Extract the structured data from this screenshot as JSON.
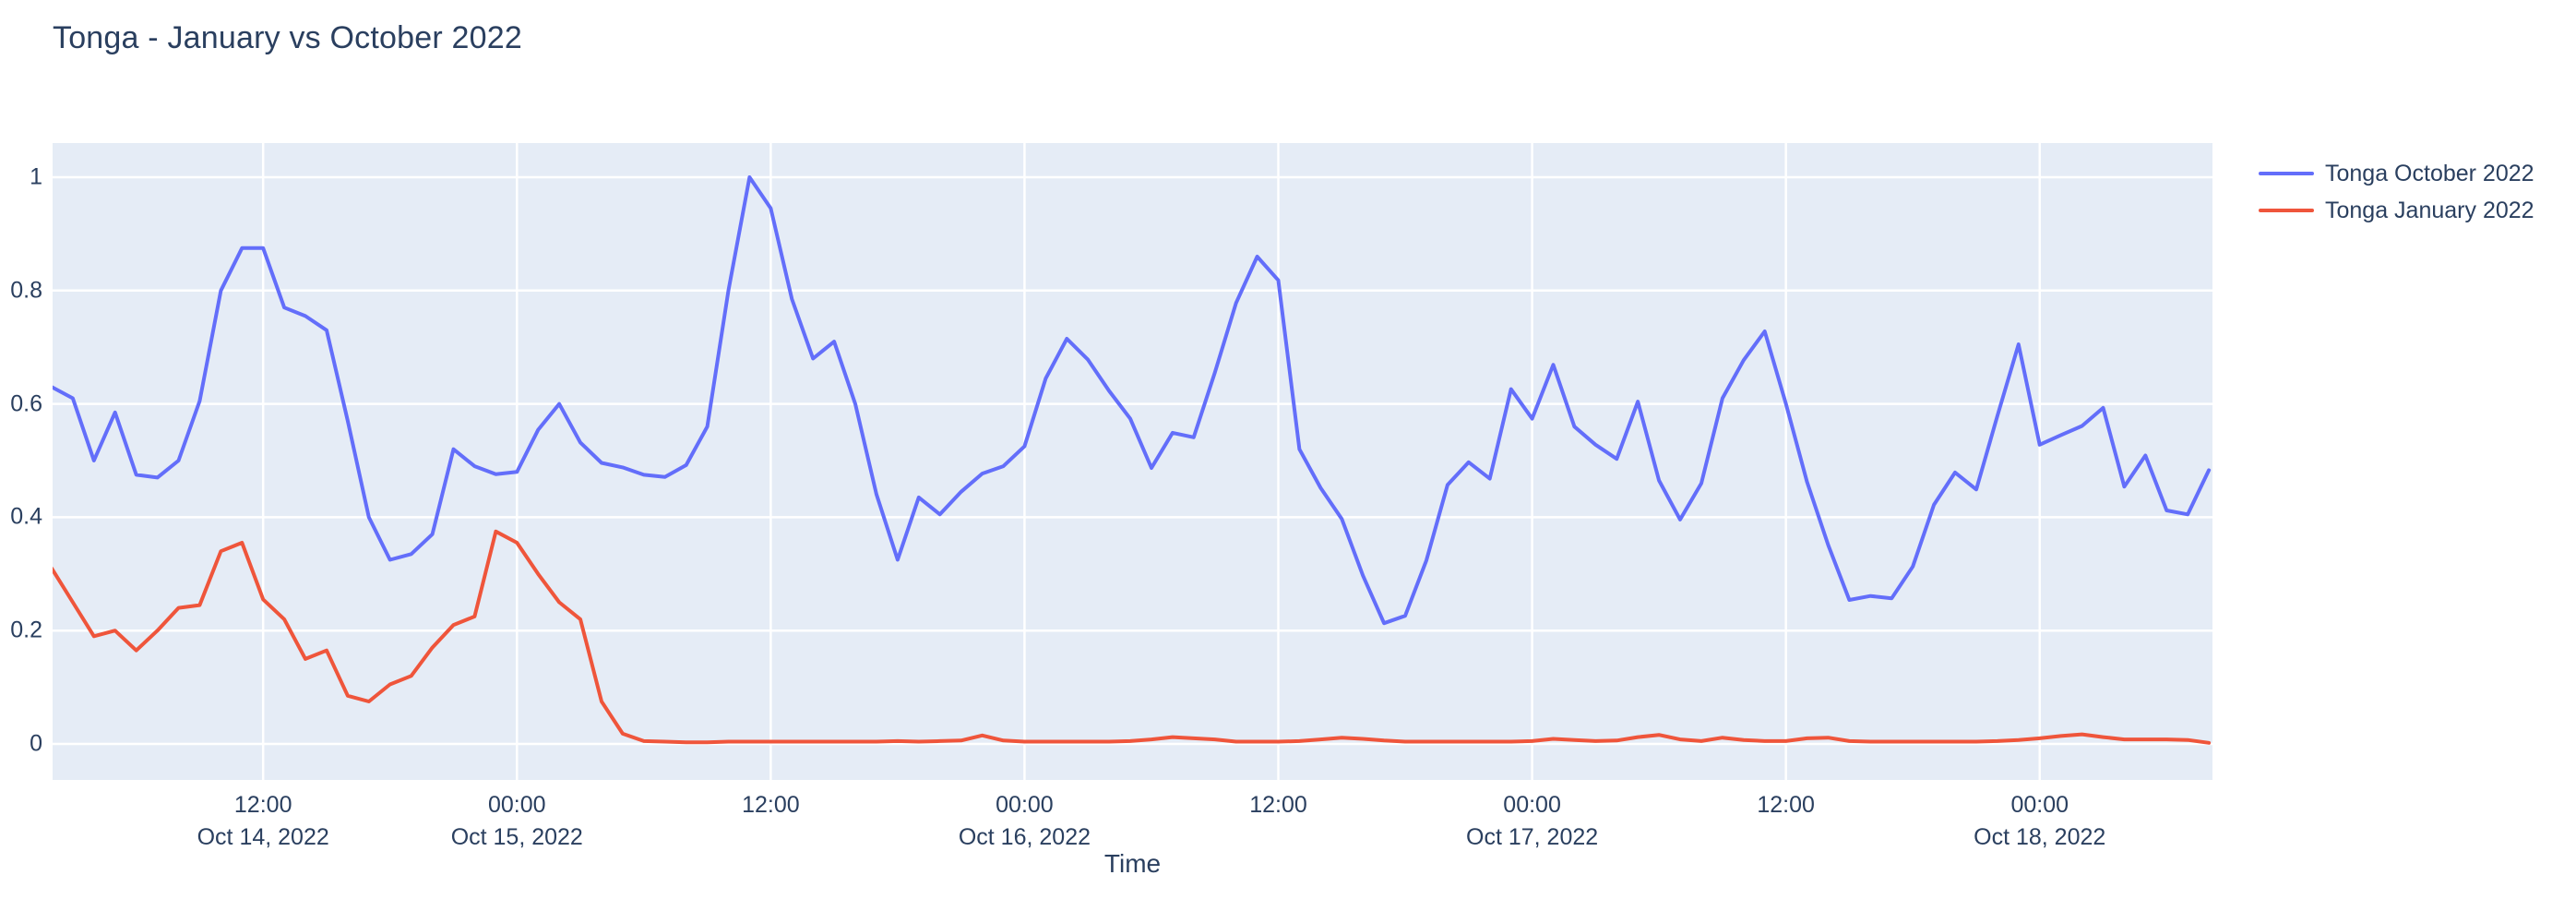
{
  "title": "Tonga - January vs October 2022",
  "colors": {
    "title_text": "#2a3f5f",
    "tick_text": "#2a3f5f",
    "plot_background": "#E5ECF6",
    "gridline": "#ffffff",
    "paper": "#ffffff",
    "series_october": "#636EFA",
    "series_january": "#EF553B"
  },
  "yaxis": {
    "ticks": [
      "0",
      "0.2",
      "0.4",
      "0.6",
      "0.8",
      "1"
    ]
  },
  "xaxis": {
    "title": "Time",
    "ticks": [
      {
        "hour_offset": 10,
        "time": "12:00",
        "date": "Oct 14, 2022"
      },
      {
        "hour_offset": 22,
        "time": "00:00",
        "date": "Oct 15, 2022"
      },
      {
        "hour_offset": 34,
        "time": "12:00",
        "date": ""
      },
      {
        "hour_offset": 46,
        "time": "00:00",
        "date": "Oct 16, 2022"
      },
      {
        "hour_offset": 58,
        "time": "12:00",
        "date": ""
      },
      {
        "hour_offset": 70,
        "time": "00:00",
        "date": "Oct 17, 2022"
      },
      {
        "hour_offset": 82,
        "time": "12:00",
        "date": ""
      },
      {
        "hour_offset": 94,
        "time": "00:00",
        "date": "Oct 18, 2022"
      }
    ]
  },
  "chart_data": {
    "type": "line",
    "title": "Tonga - January vs October 2022",
    "xlabel": "Time",
    "ylabel": "",
    "ylim": [
      0,
      1
    ],
    "grid": true,
    "legend_position": "right",
    "x_start": "2022-10-14 02:00",
    "x_step_hours": 1,
    "x_end": "2022-10-18 08:00",
    "series": [
      {
        "name": "Tonga October 2022",
        "color": "#636EFA",
        "values": [
          0.63,
          0.61,
          0.5,
          0.585,
          0.475,
          0.47,
          0.5,
          0.605,
          0.8,
          0.875,
          0.875,
          0.77,
          0.755,
          0.73,
          0.57,
          0.4,
          0.325,
          0.335,
          0.37,
          0.52,
          0.49,
          0.476,
          0.48,
          0.554,
          0.6,
          0.532,
          0.496,
          0.488,
          0.475,
          0.471,
          0.492,
          0.56,
          0.8,
          1.0,
          0.945,
          0.785,
          0.68,
          0.71,
          0.6,
          0.44,
          0.325,
          0.435,
          0.405,
          0.445,
          0.477,
          0.49,
          0.525,
          0.645,
          0.715,
          0.678,
          0.623,
          0.574,
          0.487,
          0.549,
          0.541,
          0.655,
          0.778,
          0.86,
          0.818,
          0.52,
          0.452,
          0.397,
          0.297,
          0.213,
          0.226,
          0.324,
          0.457,
          0.497,
          0.468,
          0.626,
          0.574,
          0.669,
          0.56,
          0.528,
          0.503,
          0.604,
          0.465,
          0.396,
          0.46,
          0.61,
          0.677,
          0.728,
          0.6,
          0.462,
          0.351,
          0.254,
          0.261,
          0.257,
          0.313,
          0.422,
          0.479,
          0.449,
          0.579,
          0.705,
          0.528,
          0.545,
          0.561,
          0.593,
          0.454,
          0.509,
          0.412,
          0.405,
          0.483
        ]
      },
      {
        "name": "Tonga January 2022",
        "color": "#EF553B",
        "values": [
          0.31,
          0.25,
          0.19,
          0.2,
          0.165,
          0.2,
          0.24,
          0.245,
          0.34,
          0.355,
          0.255,
          0.22,
          0.15,
          0.165,
          0.085,
          0.075,
          0.105,
          0.12,
          0.17,
          0.21,
          0.225,
          0.375,
          0.355,
          0.3,
          0.25,
          0.22,
          0.075,
          0.018,
          0.005,
          0.004,
          0.003,
          0.003,
          0.004,
          0.004,
          0.004,
          0.004,
          0.004,
          0.004,
          0.004,
          0.004,
          0.005,
          0.004,
          0.005,
          0.006,
          0.015,
          0.006,
          0.004,
          0.004,
          0.004,
          0.004,
          0.004,
          0.005,
          0.008,
          0.012,
          0.01,
          0.008,
          0.004,
          0.004,
          0.004,
          0.005,
          0.008,
          0.011,
          0.009,
          0.006,
          0.004,
          0.004,
          0.004,
          0.004,
          0.004,
          0.004,
          0.005,
          0.009,
          0.007,
          0.005,
          0.006,
          0.012,
          0.016,
          0.008,
          0.005,
          0.011,
          0.007,
          0.005,
          0.005,
          0.01,
          0.011,
          0.005,
          0.004,
          0.004,
          0.004,
          0.004,
          0.004,
          0.004,
          0.005,
          0.007,
          0.01,
          0.014,
          0.017,
          0.012,
          0.008,
          0.008,
          0.008,
          0.007,
          0.002
        ]
      }
    ]
  }
}
